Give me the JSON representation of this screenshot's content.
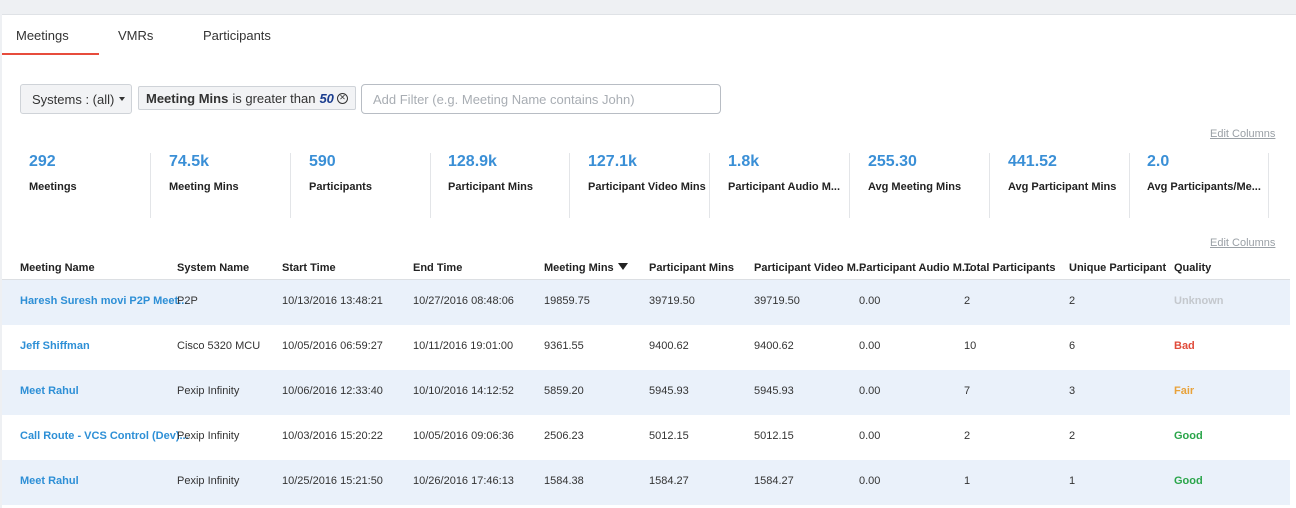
{
  "tabs": [
    {
      "label": "Meetings"
    },
    {
      "label": "VMRs"
    },
    {
      "label": "Participants"
    }
  ],
  "filters": {
    "systems_label": "Systems : (all)",
    "chip_field": "Meeting Mins",
    "chip_op": "is greater than",
    "chip_value": "50",
    "add_filter_placeholder": "Add Filter (e.g. Meeting Name contains John)"
  },
  "edit_columns_label": "Edit Columns",
  "stats": [
    {
      "value": "292",
      "label": "Meetings"
    },
    {
      "value": "74.5k",
      "label": "Meeting Mins"
    },
    {
      "value": "590",
      "label": "Participants"
    },
    {
      "value": "128.9k",
      "label": "Participant Mins"
    },
    {
      "value": "127.1k",
      "label": "Participant Video Mins"
    },
    {
      "value": "1.8k",
      "label": "Participant Audio M..."
    },
    {
      "value": "255.30",
      "label": "Avg Meeting Mins"
    },
    {
      "value": "441.52",
      "label": "Avg Participant Mins"
    },
    {
      "value": "2.0",
      "label": "Avg Participants/Me..."
    }
  ],
  "table": {
    "columns": [
      "Meeting Name",
      "System Name",
      "Start Time",
      "End Time",
      "Meeting Mins",
      "Participant Mins",
      "Participant Video M...",
      "Participant Audio M...",
      "Total Participants",
      "Unique Participant",
      "Quality"
    ],
    "rows": [
      {
        "name": "Haresh Suresh movi P2P Meet...",
        "system": "P2P",
        "start": "10/13/2016 13:48:21",
        "end": "10/27/2016 08:48:06",
        "meeting_mins": "19859.75",
        "participant_mins": "39719.50",
        "video_mins": "39719.50",
        "audio_mins": "0.00",
        "total": "2",
        "unique": "2",
        "quality": "Unknown"
      },
      {
        "name": "Jeff Shiffman",
        "system": "Cisco 5320 MCU",
        "start": "10/05/2016 06:59:27",
        "end": "10/11/2016 19:01:00",
        "meeting_mins": "9361.55",
        "participant_mins": "9400.62",
        "video_mins": "9400.62",
        "audio_mins": "0.00",
        "total": "10",
        "unique": "6",
        "quality": "Bad"
      },
      {
        "name": "Meet Rahul",
        "system": "Pexip Infinity",
        "start": "10/06/2016 12:33:40",
        "end": "10/10/2016 14:12:52",
        "meeting_mins": "5859.20",
        "participant_mins": "5945.93",
        "video_mins": "5945.93",
        "audio_mins": "0.00",
        "total": "7",
        "unique": "3",
        "quality": "Fair"
      },
      {
        "name": "Call Route - VCS Control (Dev)...",
        "system": "Pexip Infinity",
        "start": "10/03/2016 15:20:22",
        "end": "10/05/2016 09:06:36",
        "meeting_mins": "2506.23",
        "participant_mins": "5012.15",
        "video_mins": "5012.15",
        "audio_mins": "0.00",
        "total": "2",
        "unique": "2",
        "quality": "Good"
      },
      {
        "name": "Meet Rahul",
        "system": "Pexip Infinity",
        "start": "10/25/2016 15:21:50",
        "end": "10/26/2016 17:46:13",
        "meeting_mins": "1584.38",
        "participant_mins": "1584.27",
        "video_mins": "1584.27",
        "audio_mins": "0.00",
        "total": "1",
        "unique": "1",
        "quality": "Good"
      }
    ]
  },
  "colors": {
    "accent_blue": "#3a8fd6",
    "tab_underline": "#e74c3c",
    "quality_unknown": "#c4c8cd",
    "quality_bad": "#e04b3a",
    "quality_fair": "#e8a23a",
    "quality_good": "#2aa54a"
  }
}
